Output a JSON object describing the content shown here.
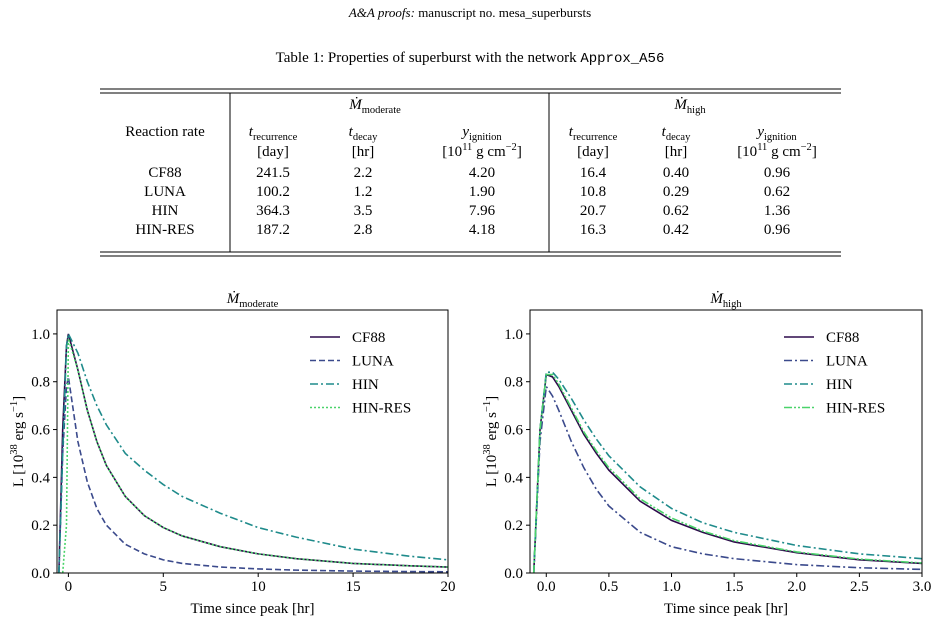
{
  "header": {
    "journal": "A&A proofs:",
    "manuscript": " manuscript no. mesa_superbursts"
  },
  "table": {
    "caption": {
      "text": "Table 1: Properties of superburst with the network ",
      "code": "Approx_A56"
    },
    "corner": "Reaction rate",
    "groups": [
      {
        "symbol": "Ṁ",
        "subscript": "moderate",
        "columns": [
          {
            "symbol": "t",
            "subscript": "recurrence",
            "unit": [
              "[day]"
            ]
          },
          {
            "symbol": "t",
            "subscript": "decay",
            "unit": [
              "[hr]"
            ]
          },
          {
            "symbol": "y",
            "subscript": "ignition",
            "unit": [
              "[10",
              "11",
              " g cm",
              "−2",
              "]"
            ]
          }
        ]
      },
      {
        "symbol": "Ṁ",
        "subscript": "high",
        "columns": [
          {
            "symbol": "t",
            "subscript": "recurrence",
            "unit": [
              "[day]"
            ]
          },
          {
            "symbol": "t",
            "subscript": "decay",
            "unit": [
              "[hr]"
            ]
          },
          {
            "symbol": "y",
            "subscript": "ignition",
            "unit": [
              "[10",
              "11",
              " g cm",
              "−2",
              "]"
            ]
          }
        ]
      }
    ],
    "rows": [
      [
        "CF88",
        "241.5",
        "2.2",
        "4.20",
        "16.4",
        "0.40",
        "0.96"
      ],
      [
        "LUNA",
        "100.2",
        "1.2",
        "1.90",
        "10.8",
        "0.29",
        "0.62"
      ],
      [
        "HIN",
        "364.3",
        "3.5",
        "7.96",
        "20.7",
        "0.62",
        "1.36"
      ],
      [
        "HIN-RES",
        "187.2",
        "2.8",
        "4.18",
        "16.3",
        "0.42",
        "0.96"
      ]
    ]
  },
  "chart_data": [
    {
      "type": "line",
      "title": [
        "Ṁ",
        "moderate"
      ],
      "xlabel": "Time since peak [hr]",
      "ylabel": [
        "L [10",
        "38",
        " erg s",
        "−1",
        "]"
      ],
      "legend": "upper right",
      "xlim": [
        -0.6,
        20
      ],
      "ylim": [
        0,
        1.1
      ],
      "xticks": [
        0,
        5,
        10,
        15,
        20
      ],
      "yticks": [
        {
          "value": 0,
          "label": "0.0"
        },
        {
          "value": 0.2,
          "label": "0.2"
        },
        {
          "value": 0.4,
          "label": "0.4"
        },
        {
          "value": 0.6,
          "label": "0.6"
        },
        {
          "value": 0.8,
          "label": "0.8"
        },
        {
          "value": 1.0,
          "label": "1.0"
        }
      ],
      "x": [
        -0.5,
        -0.3,
        -0.1,
        0,
        0.5,
        1,
        1.5,
        2,
        3,
        4,
        5,
        6,
        8,
        10,
        12,
        15,
        18,
        20
      ],
      "series": [
        {
          "name": "CF88",
          "color": "#2d0a4b",
          "linestyle": "solid",
          "values": [
            0,
            0.6,
            0.95,
            1.0,
            0.85,
            0.68,
            0.55,
            0.45,
            0.32,
            0.24,
            0.19,
            0.155,
            0.11,
            0.08,
            0.06,
            0.04,
            0.03,
            0.025
          ]
        },
        {
          "name": "LUNA",
          "color": "#3b4a8c",
          "linestyle": "dashed",
          "values": [
            0,
            0.5,
            0.78,
            0.82,
            0.55,
            0.38,
            0.27,
            0.2,
            0.12,
            0.08,
            0.055,
            0.04,
            0.025,
            0.017,
            0.012,
            0.008,
            0.006,
            0.005
          ]
        },
        {
          "name": "HIN",
          "color": "#1f8b8b",
          "linestyle": "dashdot",
          "values": [
            0,
            0.5,
            0.95,
            1.0,
            0.92,
            0.8,
            0.7,
            0.62,
            0.5,
            0.43,
            0.37,
            0.32,
            0.25,
            0.19,
            0.15,
            0.1,
            0.07,
            0.055
          ]
        },
        {
          "name": "HIN-RES",
          "color": "#4ad36a",
          "linestyle": "dotted",
          "values": [
            0,
            0,
            0.2,
            0.98,
            0.85,
            0.68,
            0.55,
            0.45,
            0.32,
            0.24,
            0.19,
            0.155,
            0.11,
            0.08,
            0.06,
            0.04,
            0.03,
            0.025
          ]
        }
      ]
    },
    {
      "type": "line",
      "title": [
        "Ṁ",
        "high"
      ],
      "xlabel": "Time since peak [hr]",
      "ylabel": [
        "L [10",
        "38",
        " erg s",
        "−1",
        "]"
      ],
      "legend": "upper right",
      "xlim": [
        -0.13,
        3.0
      ],
      "ylim": [
        0,
        1.1
      ],
      "xticks": [
        {
          "value": 0,
          "label": "0.0"
        },
        {
          "value": 0.5,
          "label": "0.5"
        },
        {
          "value": 1,
          "label": "1.0"
        },
        {
          "value": 1.5,
          "label": "1.5"
        },
        {
          "value": 2,
          "label": "2.0"
        },
        {
          "value": 2.5,
          "label": "2.5"
        },
        {
          "value": 3,
          "label": "3.0"
        }
      ],
      "yticks": [
        {
          "value": 0,
          "label": "0.0"
        },
        {
          "value": 0.2,
          "label": "0.2"
        },
        {
          "value": 0.4,
          "label": "0.4"
        },
        {
          "value": 0.6,
          "label": "0.6"
        },
        {
          "value": 0.8,
          "label": "0.8"
        },
        {
          "value": 1.0,
          "label": "1.0"
        }
      ],
      "x": [
        -0.1,
        -0.05,
        0,
        0.05,
        0.1,
        0.2,
        0.3,
        0.4,
        0.5,
        0.75,
        1,
        1.25,
        1.5,
        2,
        2.5,
        3
      ],
      "series": [
        {
          "name": "CF88",
          "color": "#2d0a4b",
          "linestyle": "solid",
          "values": [
            0,
            0.6,
            0.83,
            0.82,
            0.78,
            0.68,
            0.58,
            0.5,
            0.43,
            0.3,
            0.22,
            0.17,
            0.13,
            0.085,
            0.055,
            0.04
          ]
        },
        {
          "name": "LUNA",
          "color": "#3b4a8c",
          "linestyle": "dashdot",
          "values": [
            0,
            0.55,
            0.78,
            0.74,
            0.68,
            0.55,
            0.44,
            0.35,
            0.28,
            0.17,
            0.11,
            0.08,
            0.06,
            0.035,
            0.022,
            0.015
          ]
        },
        {
          "name": "HIN",
          "color": "#1f8b8b",
          "linestyle": "dashdot",
          "values": [
            0,
            0.6,
            0.84,
            0.84,
            0.81,
            0.73,
            0.64,
            0.56,
            0.49,
            0.36,
            0.27,
            0.21,
            0.17,
            0.115,
            0.08,
            0.06
          ]
        },
        {
          "name": "HIN-RES",
          "color": "#4ad36a",
          "linestyle": "dashdotdot",
          "values": [
            0,
            0.6,
            0.83,
            0.83,
            0.79,
            0.69,
            0.59,
            0.51,
            0.44,
            0.31,
            0.23,
            0.175,
            0.135,
            0.088,
            0.058,
            0.042
          ]
        }
      ]
    }
  ]
}
